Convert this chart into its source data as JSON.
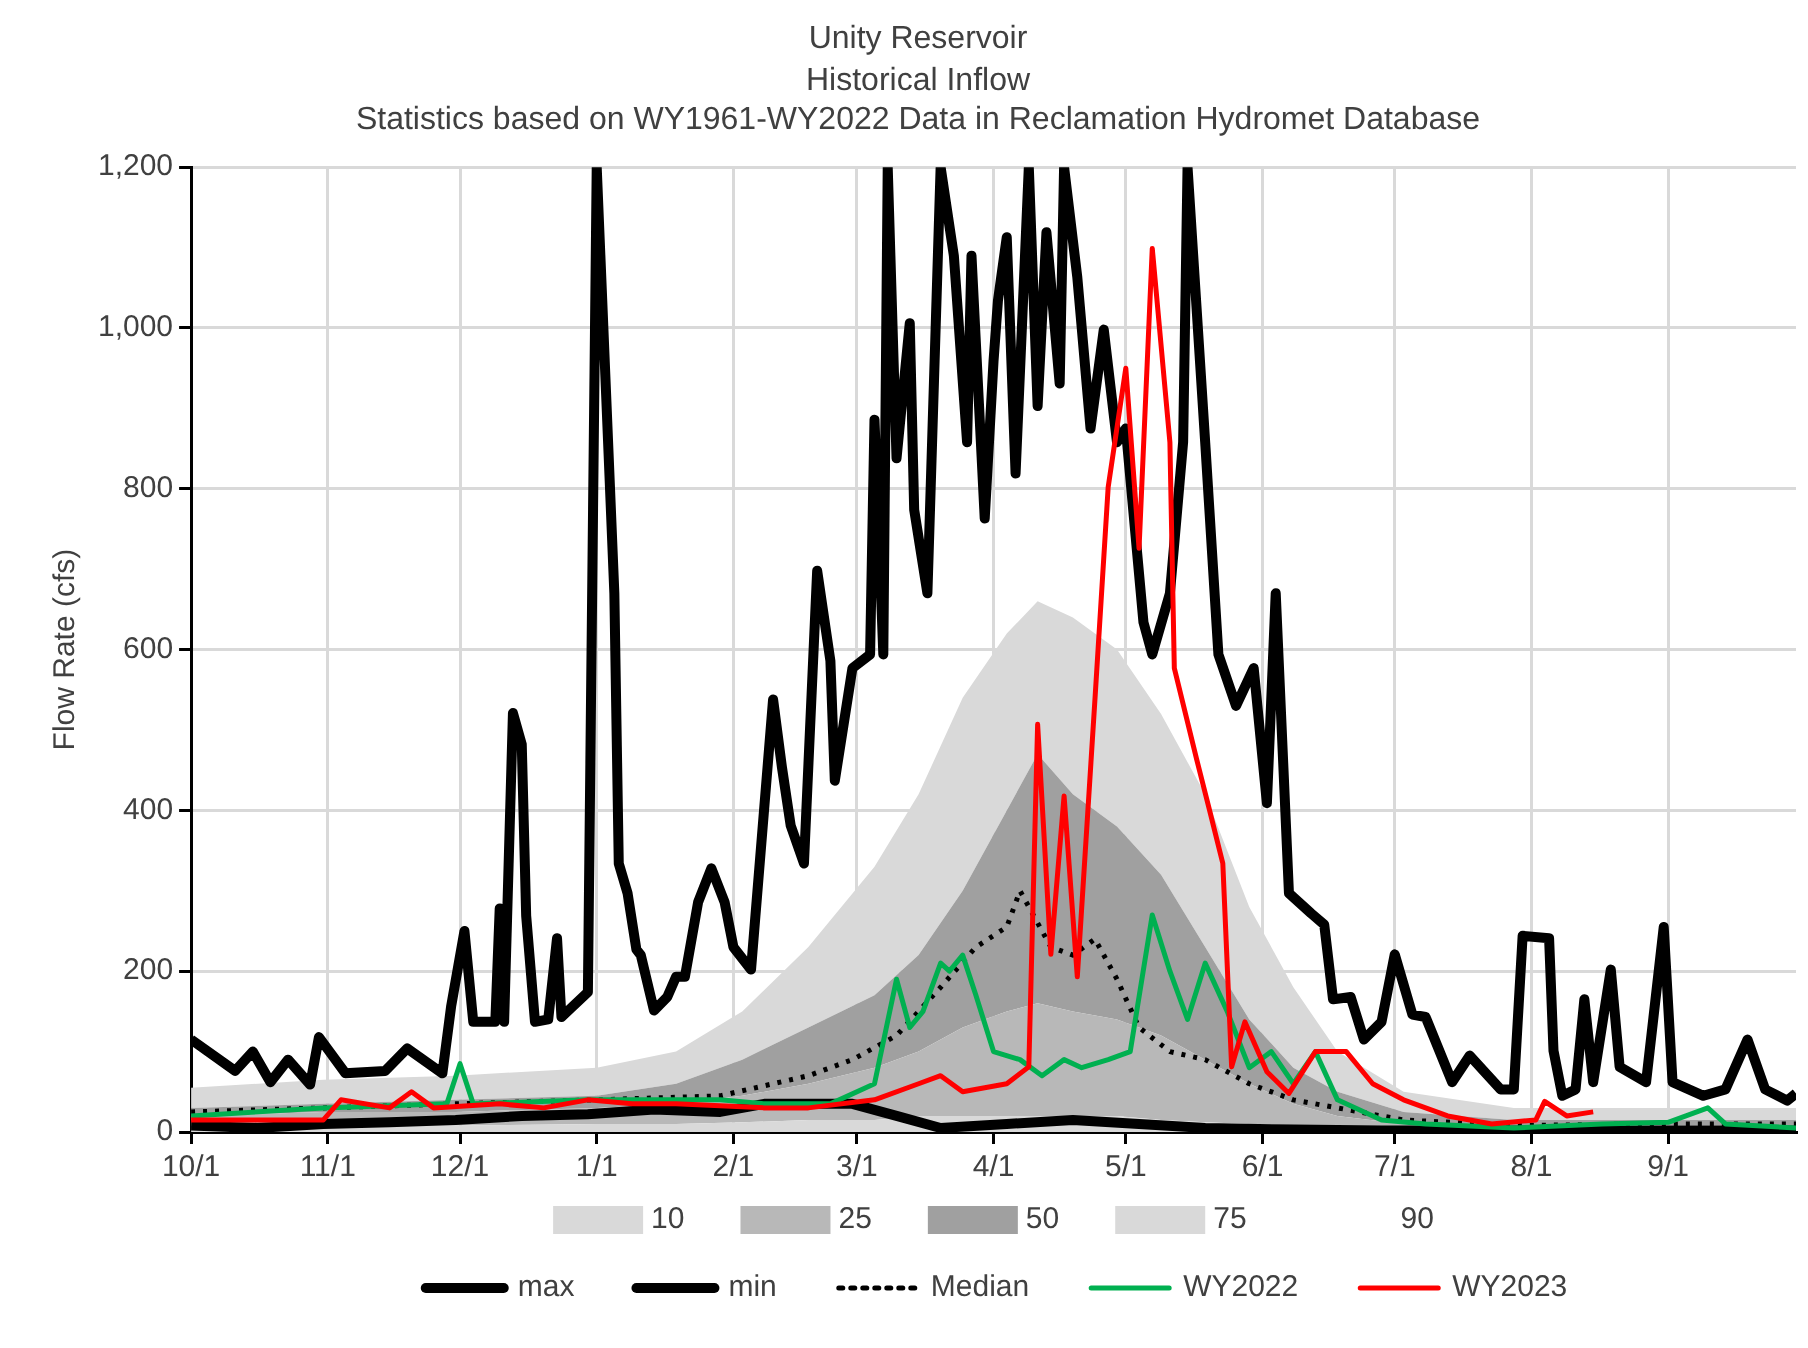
{
  "chart_data": {
    "type": "area",
    "title": "Unity Reservoir",
    "subtitle": "Historical Inflow\nStatistics based on WY1961-WY2022 Data in Reclamation Hydromet Database",
    "ylabel": "Flow Rate (cfs)",
    "stacked": true,
    "grid": true,
    "legend": "bottom",
    "line_style": "solid",
    "marker": "none",
    "xlim": [
      "2022-10-01",
      "2023-09-30"
    ],
    "xticks": [
      {
        "value": "2022-10-01",
        "label": "10/1"
      },
      {
        "value": "2022-11-01",
        "label": "11/1"
      },
      {
        "value": "2022-12-01",
        "label": "12/1"
      },
      {
        "value": "2023-01-01",
        "label": "1/1"
      },
      {
        "value": "2023-02-01",
        "label": "2/1"
      },
      {
        "value": "2023-03-01",
        "label": "3/1"
      },
      {
        "value": "2023-04-01",
        "label": "4/1"
      },
      {
        "value": "2023-05-01",
        "label": "5/1"
      },
      {
        "value": "2023-06-01",
        "label": "6/1"
      },
      {
        "value": "2023-07-01",
        "label": "7/1"
      },
      {
        "value": "2023-08-01",
        "label": "8/1"
      },
      {
        "value": "2023-09-01",
        "label": "9/1"
      }
    ],
    "ylim": [
      0,
      1200
    ],
    "yticks": [
      0,
      200,
      400,
      600,
      800,
      {
        "value": 1000,
        "label": "1,000"
      },
      {
        "value": 1200,
        "label": "1,200"
      }
    ],
    "x": [
      "2022-10-01",
      "2022-10-31",
      "2022-11-30",
      "2023-01-01",
      "2023-01-19",
      "2023-02-03",
      "2023-02-18",
      "2023-03-05",
      "2023-03-15",
      "2023-03-25",
      "2023-04-04",
      "2023-04-11",
      "2023-04-19",
      "2023-04-29",
      "2023-05-09",
      "2023-05-19",
      "2023-05-29",
      "2023-06-08",
      "2023-06-18",
      "2023-07-03",
      "2023-07-28",
      "2023-08-27",
      "2023-09-30"
    ],
    "series": [
      {
        "name": "10",
        "color": "#d9d9d9",
        "values": [
          5,
          8,
          8,
          10,
          10,
          12,
          15,
          15,
          20,
          20,
          20,
          20,
          20,
          20,
          15,
          12,
          10,
          8,
          5,
          3,
          3,
          3,
          3
        ]
      },
      {
        "name": "25",
        "color": "#b8b8b8",
        "values": [
          15,
          17,
          17,
          20,
          25,
          33,
          45,
          65,
          80,
          110,
          130,
          140,
          130,
          120,
          105,
          78,
          50,
          27,
          15,
          7,
          5,
          5,
          5
        ]
      },
      {
        "name": "50",
        "color": "#a0a0a0",
        "values": [
          10,
          10,
          15,
          15,
          25,
          45,
          70,
          90,
          120,
          170,
          250,
          310,
          270,
          240,
          200,
          140,
          80,
          45,
          30,
          15,
          7,
          7,
          7
        ]
      },
      {
        "name": "75",
        "color": "#d9d9d9",
        "values": [
          25,
          30,
          30,
          35,
          40,
          60,
          100,
          160,
          200,
          240,
          220,
          190,
          220,
          220,
          200,
          190,
          140,
          100,
          50,
          25,
          15,
          15,
          15
        ]
      },
      {
        "name": "90",
        "values": [
          null,
          null,
          null,
          null,
          null,
          null,
          null,
          null,
          null,
          null,
          null,
          null,
          null,
          null,
          null,
          null,
          null,
          null,
          null,
          null,
          null,
          null,
          null
        ]
      },
      {
        "name": "max",
        "type": "line",
        "color": "#000000",
        "x": [
          "2022-10-01",
          "2022-10-11",
          "2022-10-15",
          "2022-10-19",
          "2022-10-23",
          "2022-10-28",
          "2022-10-30",
          "2022-11-05",
          "2022-11-14",
          "2022-11-19",
          "2022-11-27",
          "2022-11-29",
          "2022-12-02",
          "2022-12-04",
          "2022-12-09",
          "2022-12-10",
          "2022-12-11",
          "2022-12-13",
          "2022-12-15",
          "2022-12-16",
          "2022-12-18",
          "2022-12-21",
          "2022-12-23",
          "2022-12-24",
          "2022-12-30",
          "2023-01-01",
          "2023-01-05",
          "2023-01-06",
          "2023-01-08",
          "2023-01-10",
          "2023-01-11",
          "2023-01-14",
          "2023-01-17",
          "2023-01-19",
          "2023-01-21",
          "2023-01-24",
          "2023-01-27",
          "2023-01-30",
          "2023-02-01",
          "2023-02-05",
          "2023-02-10",
          "2023-02-12",
          "2023-02-14",
          "2023-02-17",
          "2023-02-20",
          "2023-02-23",
          "2023-02-24",
          "2023-02-28",
          "2023-03-04",
          "2023-03-05",
          "2023-03-07",
          "2023-03-08",
          "2023-03-10",
          "2023-03-13",
          "2023-03-14",
          "2023-03-17",
          "2023-03-20",
          "2023-03-23",
          "2023-03-26",
          "2023-03-27",
          "2023-03-30",
          "2023-04-01",
          "2023-04-02",
          "2023-04-04",
          "2023-04-06",
          "2023-04-09",
          "2023-04-11",
          "2023-04-13",
          "2023-04-16",
          "2023-04-17",
          "2023-04-20",
          "2023-04-23",
          "2023-04-26",
          "2023-04-29",
          "2023-05-01",
          "2023-05-05",
          "2023-05-07",
          "2023-05-11",
          "2023-05-14",
          "2023-05-15",
          "2023-05-19",
          "2023-05-22",
          "2023-05-26",
          "2023-05-30",
          "2023-06-02",
          "2023-06-04",
          "2023-06-07",
          "2023-06-12",
          "2023-06-15",
          "2023-06-17",
          "2023-06-21",
          "2023-06-24",
          "2023-06-28",
          "2023-07-01",
          "2023-07-05",
          "2023-07-08",
          "2023-07-14",
          "2023-07-18",
          "2023-07-25",
          "2023-07-28",
          "2023-07-30",
          "2023-08-05",
          "2023-08-06",
          "2023-08-08",
          "2023-08-11",
          "2023-08-13",
          "2023-08-15",
          "2023-08-19",
          "2023-08-21",
          "2023-08-27",
          "2023-08-31",
          "2023-09-02",
          "2023-09-09",
          "2023-09-14",
          "2023-09-19",
          "2023-09-23",
          "2023-09-28",
          "2023-09-30"
        ],
        "values": [
          115,
          76,
          100,
          62,
          90,
          59,
          118,
          73,
          76,
          104,
          73,
          157,
          250,
          137,
          137,
          278,
          137,
          521,
          482,
          269,
          137,
          140,
          241,
          143,
          174,
          1200,
          670,
          334,
          297,
          227,
          220,
          151,
          168,
          193,
          193,
          286,
          328,
          286,
          230,
          202,
          538,
          454,
          381,
          334,
          698,
          586,
          437,
          577,
          594,
          886,
          594,
          1200,
          838,
          1006,
          774,
          670,
          1200,
          1090,
          858,
          1090,
          763,
          959,
          1034,
          1113,
          819,
          1200,
          903,
          1119,
          931,
          1200,
          1063,
          875,
          998,
          858,
          875,
          634,
          594,
          670,
          858,
          1200,
          858,
          594,
          530,
          577,
          409,
          670,
          297,
          272,
          258,
          165,
          168,
          115,
          137,
          221,
          146,
          143,
          62,
          95,
          53,
          53,
          244,
          241,
          101,
          45,
          53,
          165,
          62,
          202,
          81,
          62,
          255,
          62,
          45,
          53,
          115,
          53,
          39,
          48
        ]
      },
      {
        "name": "min",
        "type": "line",
        "color": "#000000",
        "x": [
          "2022-10-01",
          "2022-10-16",
          "2022-10-31",
          "2022-11-15",
          "2022-11-30",
          "2022-12-15",
          "2022-12-30",
          "2023-01-14",
          "2023-01-29",
          "2023-02-08",
          "2023-02-28",
          "2023-03-10",
          "2023-03-20",
          "2023-04-04",
          "2023-04-19",
          "2023-05-04",
          "2023-05-19",
          "2023-06-08",
          "2023-06-28",
          "2023-07-28",
          "2023-09-30"
        ],
        "values": [
          8,
          5,
          10,
          12,
          15,
          20,
          22,
          28,
          25,
          35,
          35,
          20,
          5,
          10,
          15,
          10,
          5,
          3,
          2,
          2,
          2
        ]
      },
      {
        "name": "Median",
        "type": "line",
        "line_style": "dotted",
        "color": "#000000",
        "x": [
          "2022-10-01",
          "2022-10-31",
          "2022-11-30",
          "2023-01-01",
          "2023-01-29",
          "2023-02-18",
          "2023-02-28",
          "2023-03-10",
          "2023-03-20",
          "2023-03-28",
          "2023-04-04",
          "2023-04-07",
          "2023-04-14",
          "2023-04-19",
          "2023-04-24",
          "2023-04-29",
          "2023-05-04",
          "2023-05-11",
          "2023-05-19",
          "2023-05-29",
          "2023-06-08",
          "2023-06-18",
          "2023-07-03",
          "2023-07-28",
          "2023-08-27",
          "2023-09-30"
        ],
        "values": [
          25,
          30,
          35,
          40,
          45,
          70,
          90,
          120,
          180,
          230,
          255,
          300,
          230,
          220,
          240,
          190,
          130,
          100,
          90,
          60,
          40,
          30,
          15,
          8,
          10,
          10
        ]
      },
      {
        "name": "WY2022",
        "type": "line",
        "color": "#00b050",
        "x": [
          "2022-10-01",
          "2022-10-31",
          "2022-11-28",
          "2022-12-01",
          "2022-12-04",
          "2022-12-30",
          "2023-01-29",
          "2023-02-08",
          "2023-02-23",
          "2023-03-05",
          "2023-03-10",
          "2023-03-13",
          "2023-03-16",
          "2023-03-20",
          "2023-03-22",
          "2023-03-25",
          "2023-03-28",
          "2023-04-01",
          "2023-04-07",
          "2023-04-12",
          "2023-04-17",
          "2023-04-21",
          "2023-04-27",
          "2023-05-02",
          "2023-05-07",
          "2023-05-11",
          "2023-05-15",
          "2023-05-19",
          "2023-05-24",
          "2023-05-29",
          "2023-06-03",
          "2023-06-08",
          "2023-06-13",
          "2023-06-18",
          "2023-06-28",
          "2023-07-08",
          "2023-07-28",
          "2023-08-17",
          "2023-09-01",
          "2023-09-10",
          "2023-09-14",
          "2023-09-30"
        ],
        "values": [
          20,
          30,
          35,
          85,
          35,
          40,
          40,
          35,
          35,
          60,
          190,
          130,
          150,
          210,
          200,
          220,
          170,
          100,
          90,
          70,
          90,
          80,
          90,
          100,
          270,
          200,
          140,
          210,
          150,
          80,
          100,
          60,
          100,
          40,
          15,
          10,
          5,
          10,
          12,
          30,
          10,
          5
        ]
      },
      {
        "name": "WY2023",
        "type": "line",
        "color": "#ff0000",
        "x": [
          "2022-10-01",
          "2022-10-31",
          "2022-11-04",
          "2022-11-15",
          "2022-11-20",
          "2022-11-25",
          "2022-12-10",
          "2022-12-20",
          "2022-12-30",
          "2023-01-09",
          "2023-01-19",
          "2023-02-08",
          "2023-02-18",
          "2023-03-05",
          "2023-03-15",
          "2023-03-20",
          "2023-03-25",
          "2023-04-04",
          "2023-04-09",
          "2023-04-11",
          "2023-04-14",
          "2023-04-17",
          "2023-04-20",
          "2023-04-24",
          "2023-04-27",
          "2023-05-01",
          "2023-05-04",
          "2023-05-07",
          "2023-05-11",
          "2023-05-12",
          "2023-05-17",
          "2023-05-20",
          "2023-05-23",
          "2023-05-25",
          "2023-05-28",
          "2023-06-02",
          "2023-06-07",
          "2023-06-13",
          "2023-06-20",
          "2023-06-26",
          "2023-07-03",
          "2023-07-13",
          "2023-07-23",
          "2023-08-02",
          "2023-08-04",
          "2023-08-09",
          "2023-08-15"
        ],
        "values": [
          15,
          15,
          40,
          30,
          50,
          30,
          35,
          30,
          40,
          35,
          35,
          30,
          30,
          40,
          60,
          70,
          50,
          60,
          81,
          507,
          221,
          418,
          193,
          538,
          802,
          950,
          726,
          1099,
          858,
          577,
          465,
          400,
          334,
          81,
          137,
          75,
          48,
          100,
          100,
          60,
          40,
          20,
          10,
          15,
          38,
          20,
          25
        ]
      }
    ]
  }
}
